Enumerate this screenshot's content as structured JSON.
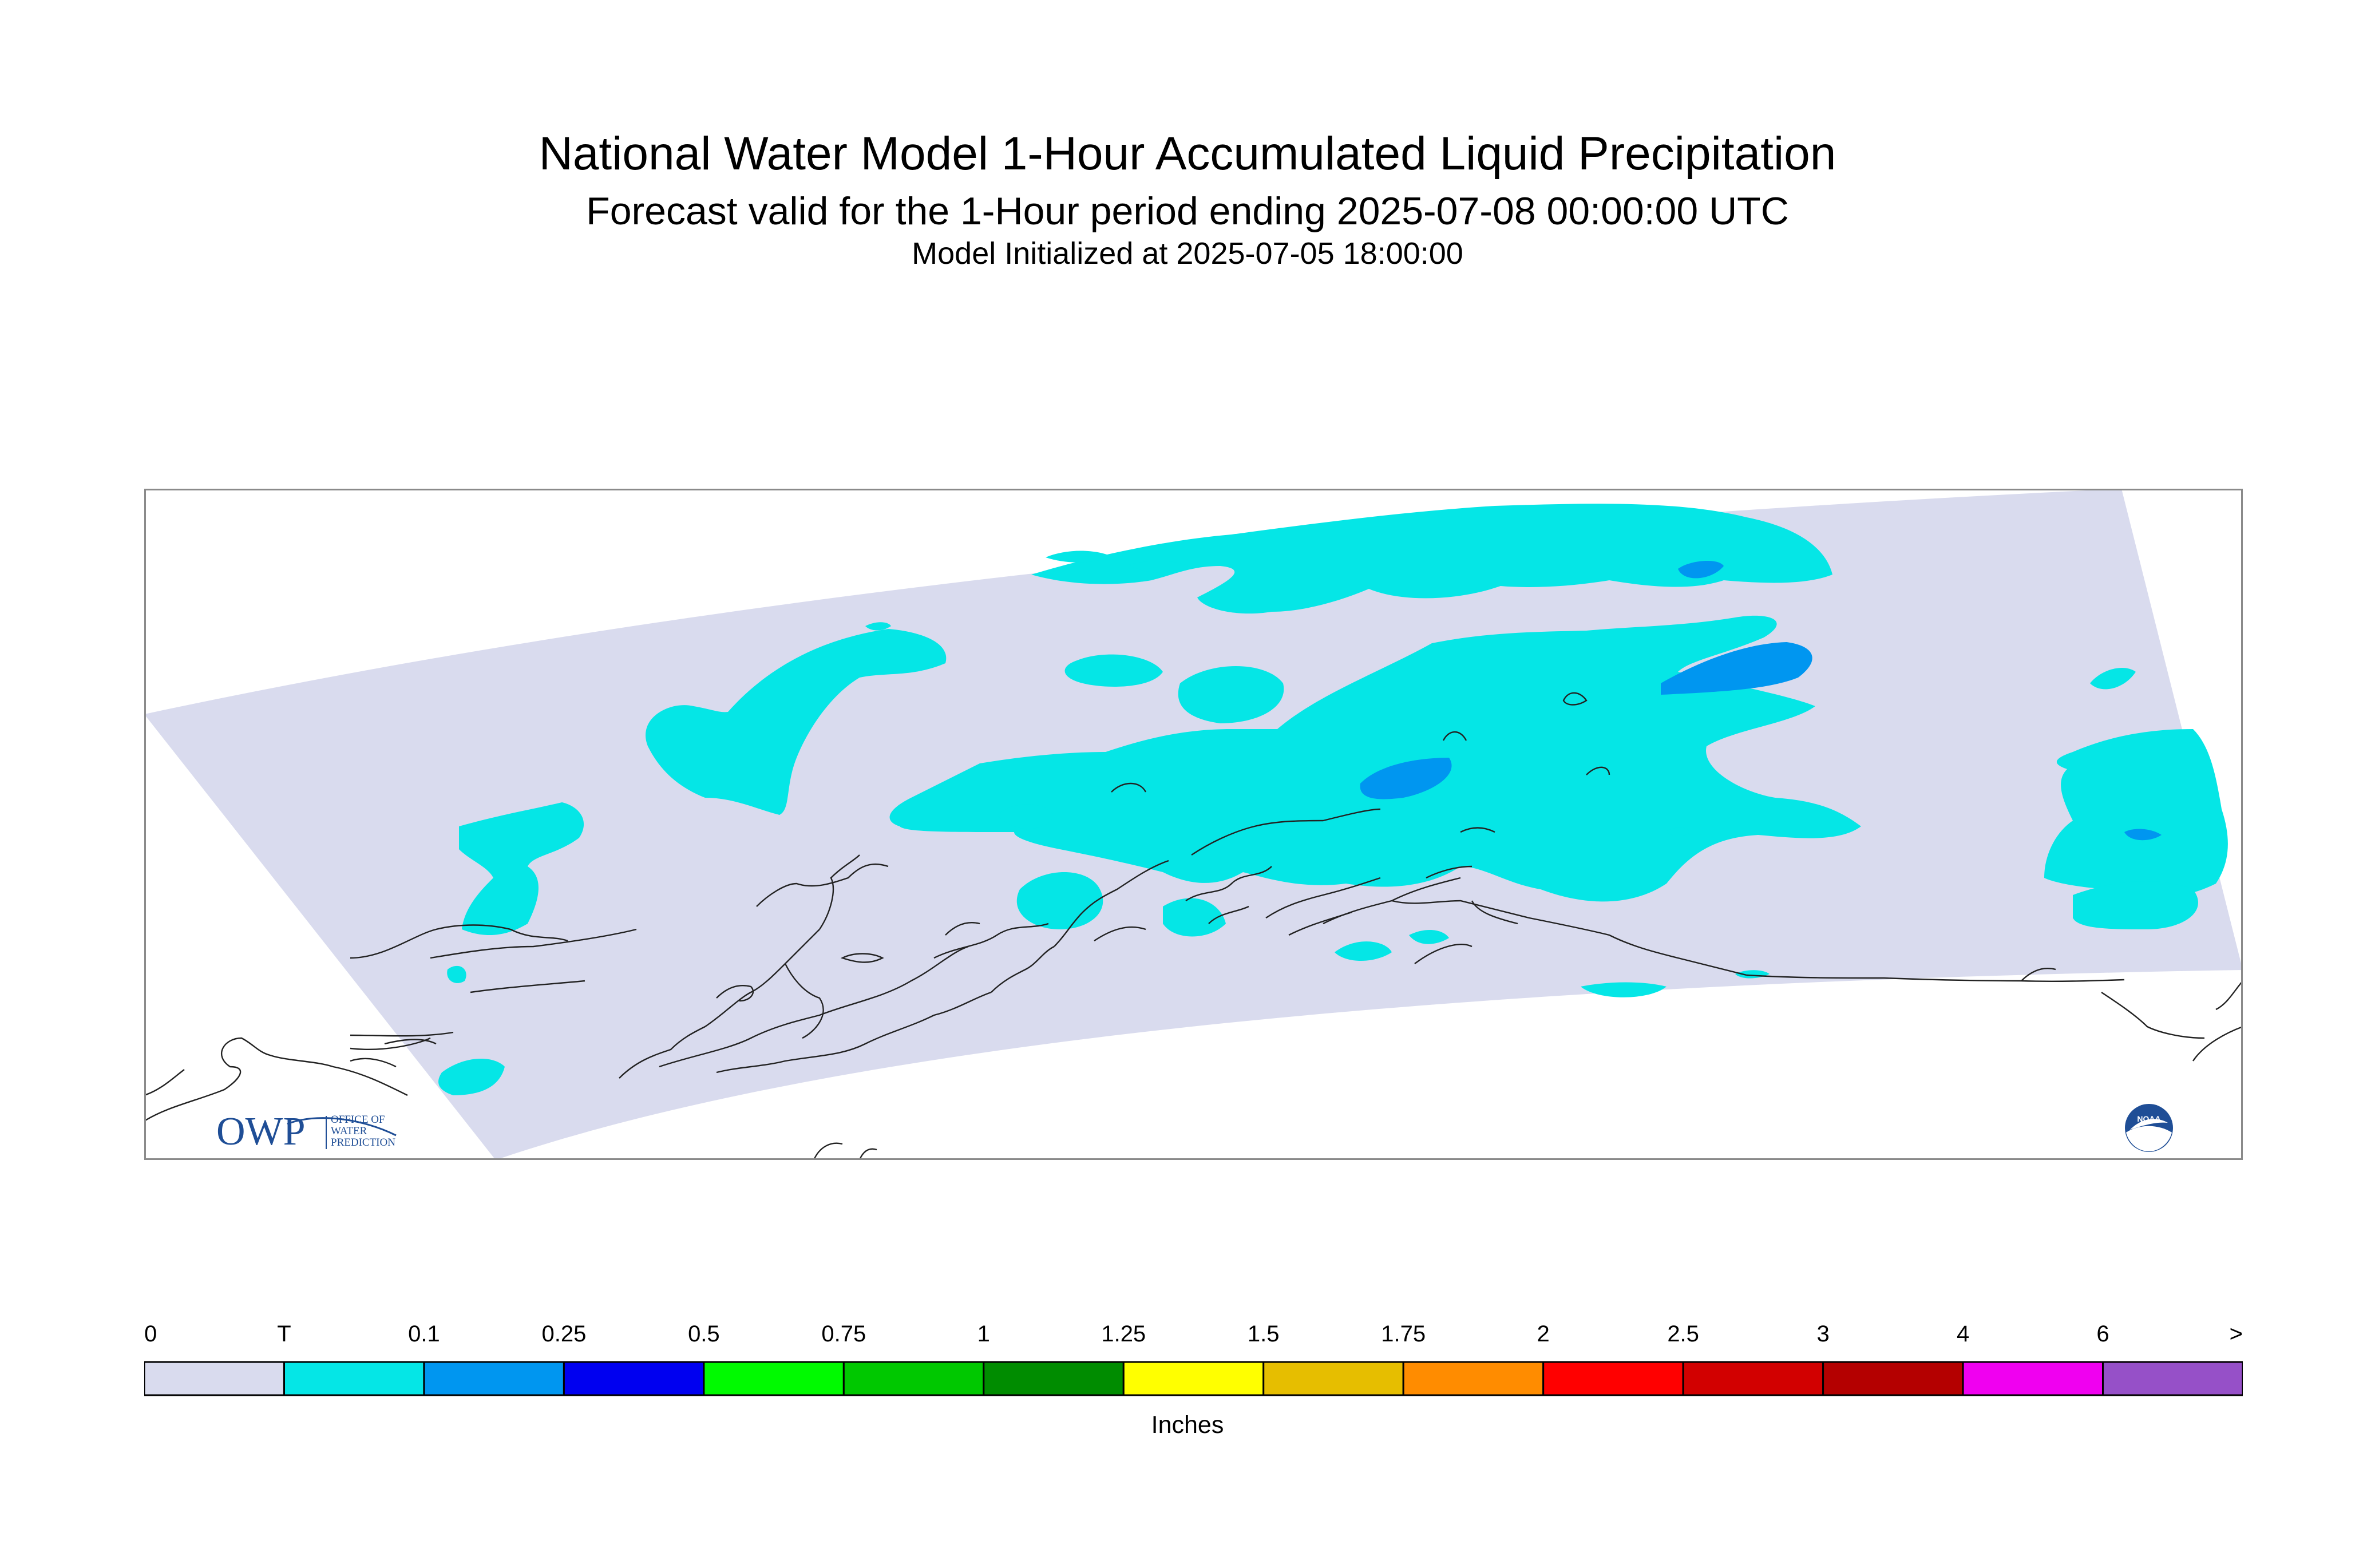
{
  "header": {
    "title": "National Water Model 1-Hour Accumulated Liquid Precipitation",
    "subtitle": "Forecast valid for the 1-Hour period ending 2025-07-08 00:00:00 UTC",
    "init": "Model Initialized at 2025-07-05 18:00:00"
  },
  "colors": {
    "frame": "#8a8a8a",
    "domain_fill": "#d9dbee",
    "coast": "#222222",
    "trace": "#05e6e6",
    "light_blue": "#0096f0",
    "owp": "#1f4e96"
  },
  "logos": {
    "owp_mark": "OWP",
    "owp_text": [
      "OFFICE OF",
      "WATER",
      "PREDICTION"
    ],
    "noaa": "NOAA"
  },
  "legend": {
    "ticks": [
      "0",
      "T",
      "0.1",
      "0.25",
      "0.5",
      "0.75",
      "1",
      "1.25",
      "1.5",
      "1.75",
      "2",
      "2.5",
      "3",
      "4",
      "6",
      ">"
    ],
    "bins": [
      "#d9dbee",
      "#05e6e6",
      "#0096f0",
      "#0000f0",
      "#00fa00",
      "#00c800",
      "#008c00",
      "#ffff00",
      "#e6be00",
      "#ff8c00",
      "#ff0000",
      "#d20000",
      "#b40000",
      "#f000f0",
      "#9650c8"
    ],
    "units": "Inches"
  }
}
